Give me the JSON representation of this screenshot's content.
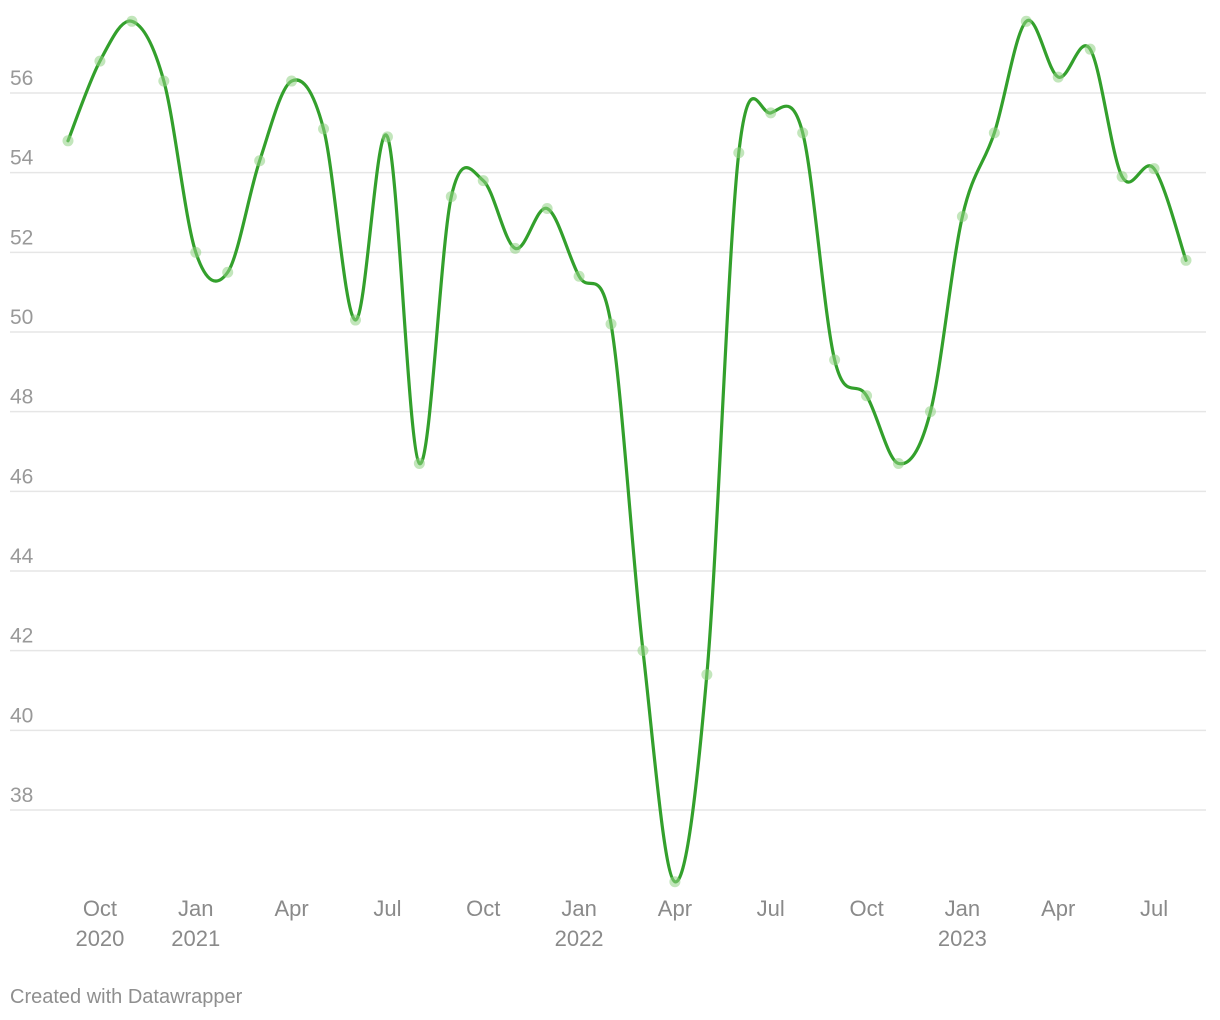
{
  "credit": "Created with Datawrapper",
  "chart_data": {
    "type": "line",
    "title": "",
    "xlabel": "",
    "ylabel": "",
    "ylim": [
      36,
      58
    ],
    "y_ticks": [
      38,
      40,
      42,
      44,
      46,
      48,
      50,
      52,
      54,
      56
    ],
    "grid": true,
    "curve": "smooth",
    "color": "#33a02c",
    "point_color": "#8fd184",
    "x_ticks": [
      {
        "date": "2020-10",
        "label": "Oct",
        "year": "2020"
      },
      {
        "date": "2021-01",
        "label": "Jan",
        "year": "2021"
      },
      {
        "date": "2021-04",
        "label": "Apr",
        "year": ""
      },
      {
        "date": "2021-07",
        "label": "Jul",
        "year": ""
      },
      {
        "date": "2021-10",
        "label": "Oct",
        "year": ""
      },
      {
        "date": "2022-01",
        "label": "Jan",
        "year": "2022"
      },
      {
        "date": "2022-04",
        "label": "Apr",
        "year": ""
      },
      {
        "date": "2022-07",
        "label": "Jul",
        "year": ""
      },
      {
        "date": "2022-10",
        "label": "Oct",
        "year": ""
      },
      {
        "date": "2023-01",
        "label": "Jan",
        "year": "2023"
      },
      {
        "date": "2023-04",
        "label": "Apr",
        "year": ""
      },
      {
        "date": "2023-07",
        "label": "Jul",
        "year": ""
      }
    ],
    "series": [
      {
        "x": [
          "2020-09",
          "2020-10",
          "2020-11",
          "2020-12",
          "2021-01",
          "2021-02",
          "2021-03",
          "2021-04",
          "2021-05",
          "2021-06",
          "2021-07",
          "2021-08",
          "2021-09",
          "2021-10",
          "2021-11",
          "2021-12",
          "2022-01",
          "2022-02",
          "2022-03",
          "2022-04",
          "2022-05",
          "2022-06",
          "2022-07",
          "2022-08",
          "2022-09",
          "2022-10",
          "2022-11",
          "2022-12",
          "2023-01",
          "2023-02",
          "2023-03",
          "2023-04",
          "2023-05",
          "2023-06",
          "2023-07",
          "2023-08"
        ],
        "values": [
          54.8,
          56.8,
          57.8,
          56.3,
          52.0,
          51.5,
          54.3,
          56.3,
          55.1,
          50.3,
          54.9,
          46.7,
          53.4,
          53.8,
          52.1,
          53.1,
          51.4,
          50.2,
          42.0,
          36.2,
          41.4,
          54.5,
          55.5,
          55.0,
          49.3,
          48.4,
          46.7,
          48.0,
          52.9,
          55.0,
          57.8,
          56.4,
          57.1,
          53.9,
          54.1,
          51.8
        ]
      }
    ]
  }
}
